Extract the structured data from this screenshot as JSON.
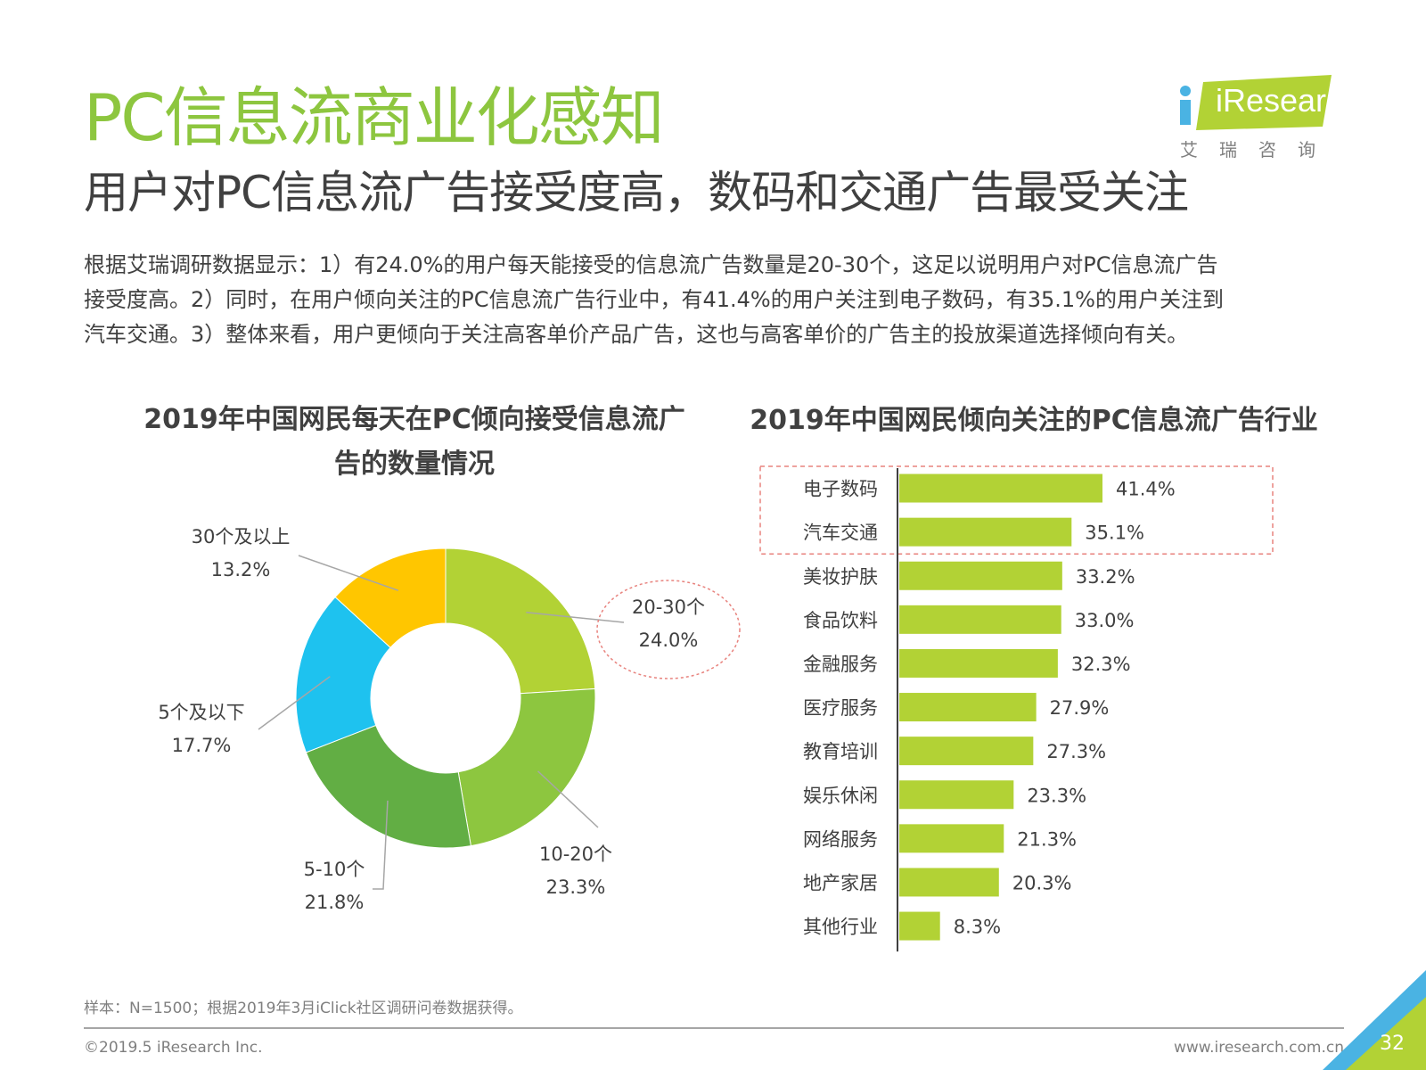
{
  "header": {
    "title": "PC信息流商业化感知",
    "subtitle": "用户对PC信息流广告接受度高，数码和交通广告最受关注"
  },
  "logo": {
    "brand": "iResearch",
    "tagline": "艾瑞咨询",
    "colors": {
      "green": "#b2d235",
      "blue": "#4ab3e3"
    }
  },
  "summary": [
    "根据艾瑞调研数据显示：1）有24.0%的用户每天能接受的信息流广告数量是20-30个，这足以说明用户对PC信息流广告",
    "接受度高。2）同时，在用户倾向关注的PC信息流广告行业中，有41.4%的用户关注到电子数码，有35.1%的用户关注到",
    "汽车交通。3）整体来看，用户更倾向于关注高客单价产品广告，这也与高客单价的广告主的投放渠道选择倾向有关。"
  ],
  "chart_data": [
    {
      "type": "pie",
      "variant": "donut",
      "title": "2019年中国网民每天在PC倾向接受信息流广告的数量情况",
      "slices": [
        {
          "label": "20-30个",
          "value": 24.0,
          "display": "24.0%",
          "color": "#b2d235",
          "highlighted": true
        },
        {
          "label": "10-20个",
          "value": 23.3,
          "display": "23.3%",
          "color": "#8dc63f"
        },
        {
          "label": "5-10个",
          "value": 21.8,
          "display": "21.8%",
          "color": "#62ae44"
        },
        {
          "label": "5个及以下",
          "value": 17.7,
          "display": "17.7%",
          "color": "#1ec2ef"
        },
        {
          "label": "30个及以上",
          "value": 13.2,
          "display": "13.2%",
          "color": "#ffc600"
        }
      ]
    },
    {
      "type": "bar",
      "orientation": "horizontal",
      "title": "2019年中国网民倾向关注的PC信息流广告行业",
      "categories": [
        "电子数码",
        "汽车交通",
        "美妆护肤",
        "食品饮料",
        "金融服务",
        "医疗服务",
        "教育培训",
        "娱乐休闲",
        "网络服务",
        "地产家居",
        "其他行业"
      ],
      "values": [
        41.4,
        35.1,
        33.2,
        33.0,
        32.3,
        27.9,
        27.3,
        23.3,
        21.3,
        20.3,
        8.3
      ],
      "value_labels": [
        "41.4%",
        "35.1%",
        "33.2%",
        "33.0%",
        "32.3%",
        "27.9%",
        "27.3%",
        "23.3%",
        "21.3%",
        "20.3%",
        "8.3%"
      ],
      "bar_color": "#b2d235",
      "highlighted_categories": [
        "电子数码",
        "汽车交通"
      ],
      "highlight_color": "#e8837e",
      "xlim": [
        0,
        41.4
      ]
    }
  ],
  "footer": {
    "source": "样本：N=1500；根据2019年3月iClick社区调研问卷数据获得。",
    "copyright": "©2019.5 iResearch Inc.",
    "website": "www.iresearch.com.cn",
    "page": "32"
  }
}
